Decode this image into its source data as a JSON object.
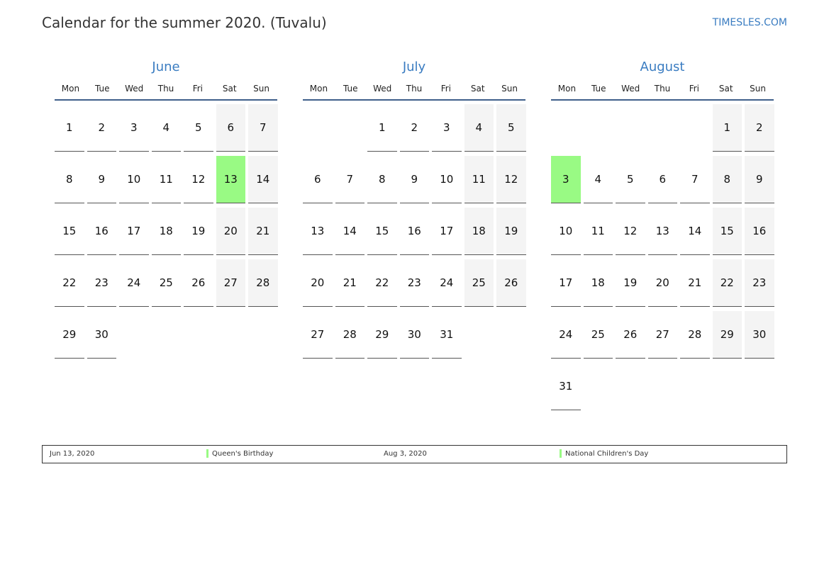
{
  "title": "Calendar for the summer 2020. (Tuvalu)",
  "brand": "TIMESLES.COM",
  "weekdays": [
    "Mon",
    "Tue",
    "Wed",
    "Thu",
    "Fri",
    "Sat",
    "Sun"
  ],
  "colors": {
    "accent": "#3a7cc1",
    "holiday": "#99fa84",
    "weekend": "#f4f4f4"
  },
  "months": [
    {
      "name": "June",
      "start_weekday": 0,
      "days": 30,
      "holidays": [
        13
      ]
    },
    {
      "name": "July",
      "start_weekday": 2,
      "days": 31,
      "holidays": []
    },
    {
      "name": "August",
      "start_weekday": 5,
      "days": 31,
      "holidays": [
        3
      ]
    }
  ],
  "legend": [
    {
      "date": "Jun 13, 2020",
      "name": "Queen's Birthday"
    },
    {
      "date": "Aug 3, 2020",
      "name": "National Children's Day"
    }
  ]
}
